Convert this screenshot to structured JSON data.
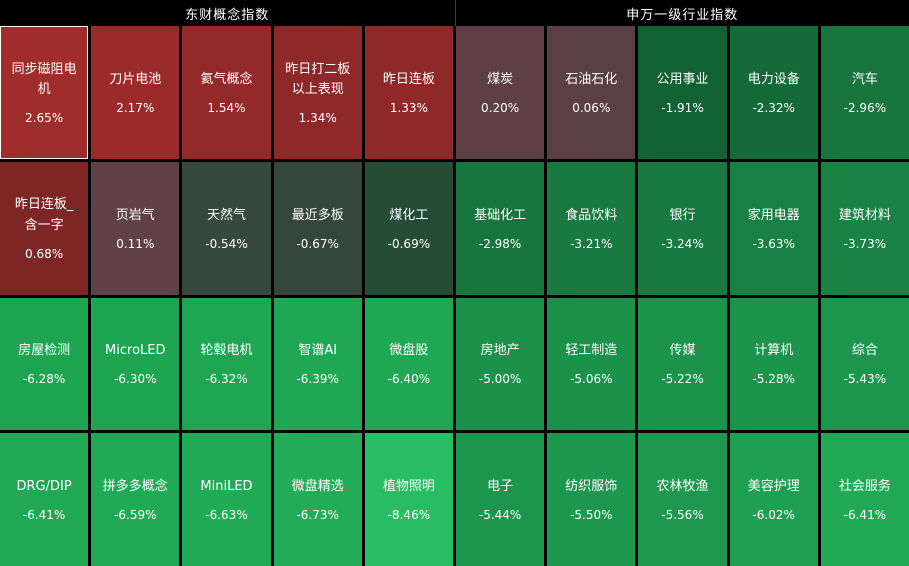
{
  "chart_data": {
    "type": "heatmap",
    "title": "",
    "legend_position": "none",
    "value_unit": "percent_change",
    "color_positive": "#9b2a2a",
    "color_negative": "#20a854",
    "groups": [
      {
        "title": "东财概念指数",
        "tiles": [
          {
            "name": "同步磁阻电机",
            "value": 2.65,
            "display": "2.65%",
            "color": "#a02c2c",
            "selected": true
          },
          {
            "name": "刀片电池",
            "value": 2.17,
            "display": "2.17%",
            "color": "#9b2a2a",
            "selected": false
          },
          {
            "name": "氦气概念",
            "value": 1.54,
            "display": "1.54%",
            "color": "#932929",
            "selected": false
          },
          {
            "name": "昨日打二板以上表现",
            "value": 1.34,
            "display": "1.34%",
            "color": "#8f2828",
            "selected": false
          },
          {
            "name": "昨日连板",
            "value": 1.33,
            "display": "1.33%",
            "color": "#8f2828",
            "selected": false
          },
          {
            "name": "昨日连板_含一字",
            "value": 0.68,
            "display": "0.68%",
            "color": "#7e2626",
            "selected": false
          },
          {
            "name": "页岩气",
            "value": 0.11,
            "display": "0.11%",
            "color": "#5f4147",
            "selected": false
          },
          {
            "name": "天然气",
            "value": -0.54,
            "display": "-0.54%",
            "color": "#37483f",
            "selected": false
          },
          {
            "name": "最近多板",
            "value": -0.67,
            "display": "-0.67%",
            "color": "#35473d",
            "selected": false
          },
          {
            "name": "煤化工",
            "value": -0.69,
            "display": "-0.69%",
            "color": "#254d36",
            "selected": false
          },
          {
            "name": "房屋检测",
            "value": -6.28,
            "display": "-6.28%",
            "color": "#1ea551",
            "selected": false
          },
          {
            "name": "MicroLED",
            "value": -6.3,
            "display": "-6.30%",
            "color": "#1ea551",
            "selected": false
          },
          {
            "name": "轮毂电机",
            "value": -6.32,
            "display": "-6.32%",
            "color": "#1fa652",
            "selected": false
          },
          {
            "name": "智谱AI",
            "value": -6.39,
            "display": "-6.39%",
            "color": "#1fa753",
            "selected": false
          },
          {
            "name": "微盘股",
            "value": -6.4,
            "display": "-6.40%",
            "color": "#1fa753",
            "selected": false
          },
          {
            "name": "DRG/DIP",
            "value": -6.41,
            "display": "-6.41%",
            "color": "#20a854",
            "selected": false
          },
          {
            "name": "拼多多概念",
            "value": -6.59,
            "display": "-6.59%",
            "color": "#21aa56",
            "selected": false
          },
          {
            "name": "MiniLED",
            "value": -6.63,
            "display": "-6.63%",
            "color": "#21ab56",
            "selected": false
          },
          {
            "name": "微盘精选",
            "value": -6.73,
            "display": "-6.73%",
            "color": "#22ac57",
            "selected": false
          },
          {
            "name": "植物照明",
            "value": -8.46,
            "display": "-8.46%",
            "color": "#28bd63",
            "selected": false
          }
        ]
      },
      {
        "title": "申万一级行业指数",
        "tiles": [
          {
            "name": "煤炭",
            "value": 0.2,
            "display": "0.20%",
            "color": "#5e3f46",
            "selected": false
          },
          {
            "name": "石油石化",
            "value": 0.06,
            "display": "0.06%",
            "color": "#5a4046",
            "selected": false
          },
          {
            "name": "公用事业",
            "value": -1.91,
            "display": "-1.91%",
            "color": "#136233",
            "selected": false
          },
          {
            "name": "电力设备",
            "value": -2.32,
            "display": "-2.32%",
            "color": "#156b38",
            "selected": false
          },
          {
            "name": "汽车",
            "value": -2.96,
            "display": "-2.96%",
            "color": "#17753d",
            "selected": false
          },
          {
            "name": "基础化工",
            "value": -2.98,
            "display": "-2.98%",
            "color": "#17753d",
            "selected": false
          },
          {
            "name": "食品饮料",
            "value": -3.21,
            "display": "-3.21%",
            "color": "#187a40",
            "selected": false
          },
          {
            "name": "银行",
            "value": -3.24,
            "display": "-3.24%",
            "color": "#187a40",
            "selected": false
          },
          {
            "name": "家用电器",
            "value": -3.63,
            "display": "-3.63%",
            "color": "#198043",
            "selected": false
          },
          {
            "name": "建筑材料",
            "value": -3.73,
            "display": "-3.73%",
            "color": "#1a8244",
            "selected": false
          },
          {
            "name": "房地产",
            "value": -5.0,
            "display": "-5.00%",
            "color": "#1b914a",
            "selected": false
          },
          {
            "name": "轻工制造",
            "value": -5.06,
            "display": "-5.06%",
            "color": "#1b914a",
            "selected": false
          },
          {
            "name": "传媒",
            "value": -5.22,
            "display": "-5.22%",
            "color": "#1c934b",
            "selected": false
          },
          {
            "name": "计算机",
            "value": -5.28,
            "display": "-5.28%",
            "color": "#1c944c",
            "selected": false
          },
          {
            "name": "综合",
            "value": -5.43,
            "display": "-5.43%",
            "color": "#1d964d",
            "selected": false
          },
          {
            "name": "电子",
            "value": -5.44,
            "display": "-5.44%",
            "color": "#1d964d",
            "selected": false
          },
          {
            "name": "纺织服饰",
            "value": -5.5,
            "display": "-5.50%",
            "color": "#1d974e",
            "selected": false
          },
          {
            "name": "农林牧渔",
            "value": -5.56,
            "display": "-5.56%",
            "color": "#1e984e",
            "selected": false
          },
          {
            "name": "美容护理",
            "value": -6.02,
            "display": "-6.02%",
            "color": "#1fa050",
            "selected": false
          },
          {
            "name": "社会服务",
            "value": -6.41,
            "display": "-6.41%",
            "color": "#20a854",
            "selected": false
          }
        ]
      }
    ]
  }
}
